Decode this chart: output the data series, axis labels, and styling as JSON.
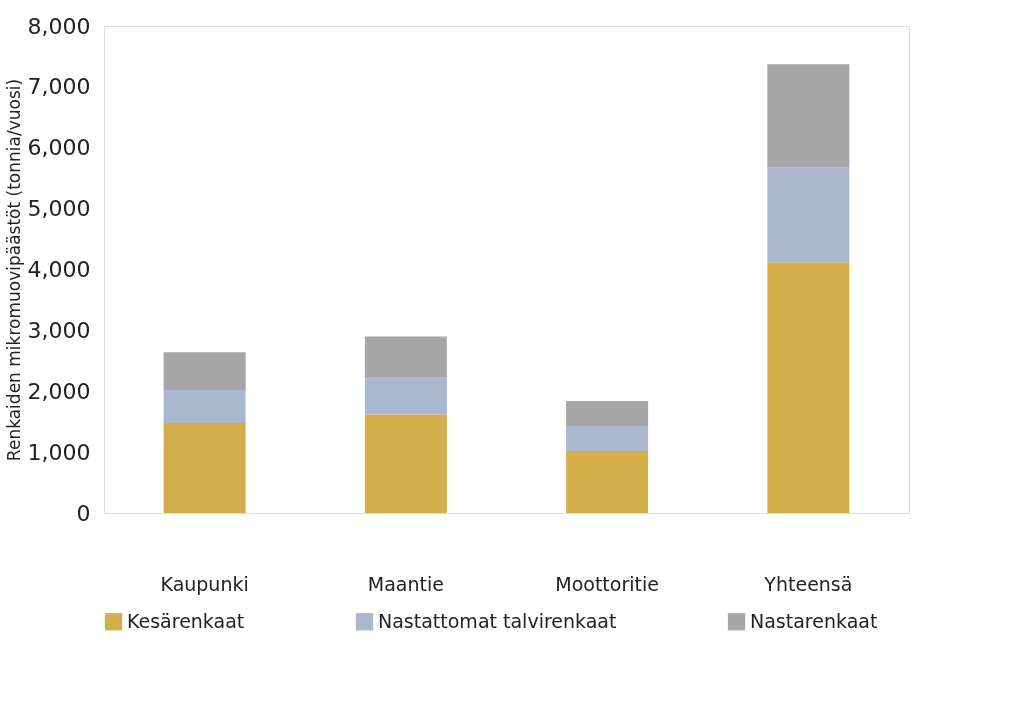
{
  "chart_data": {
    "type": "bar",
    "stacked": true,
    "ylabel": "Renkaiden mikromuovipäästöt (tonnia/vuosi)",
    "categories": [
      "Kaupunki",
      "Maantie",
      "Moottoritie",
      "Yhteensä"
    ],
    "series": [
      {
        "name": "Kesärenkaat",
        "color": "#d4ae4a",
        "values": [
          1480,
          1620,
          1020,
          4120
        ]
      },
      {
        "name": "Nastattomat talvirenkaat",
        "color": "#a9b7cf",
        "values": [
          540,
          600,
          410,
          1560
        ]
      },
      {
        "name": "Nastarenkaat",
        "color": "#a6a6a6",
        "values": [
          620,
          680,
          410,
          1690
        ]
      }
    ],
    "ylim": [
      0,
      8000
    ],
    "yticks": [
      0,
      {
        "value": 1000,
        "label": "1,000"
      },
      {
        "value": 2000,
        "label": "2,000"
      },
      {
        "value": 3000,
        "label": "3,000"
      },
      {
        "value": 4000,
        "label": "4,000"
      },
      {
        "value": 5000,
        "label": "5,000"
      },
      {
        "value": 6000,
        "label": "6,000"
      },
      {
        "value": 7000,
        "label": "7,000"
      },
      {
        "value": 8000,
        "label": "8,000"
      }
    ],
    "grid": false,
    "legend": "bottom"
  }
}
